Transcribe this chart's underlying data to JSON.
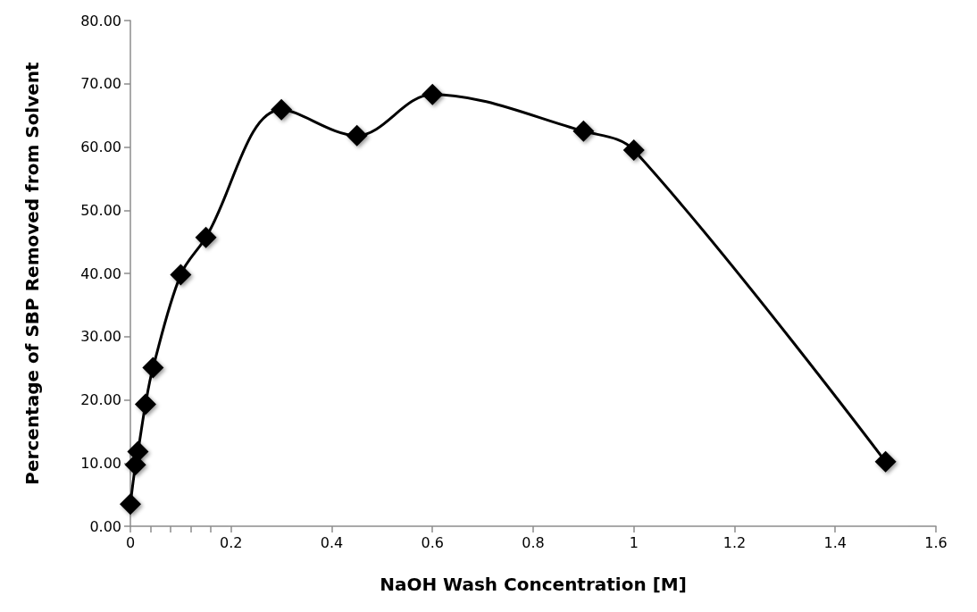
{
  "chart_data": {
    "type": "line",
    "xlabel": "NaOH Wash Concentration [M]",
    "ylabel": "Percentage of SBP Removed from Solvent",
    "x": [
      0,
      0.01,
      0.015,
      0.03,
      0.045,
      0.1,
      0.15,
      0.3,
      0.45,
      0.6,
      0.9,
      1,
      1.5
    ],
    "series": [
      {
        "color": "#000000",
        "values": [
          3.5,
          9.7,
          11.8,
          19.3,
          25.1,
          39.8,
          45.7,
          65.9,
          61.8,
          68.3,
          62.5,
          59.5,
          10.2
        ]
      }
    ],
    "xlim": [
      0,
      1.6
    ],
    "xticks": [
      0,
      {
        "value": 0.04,
        "label": null
      },
      {
        "value": 0.08,
        "label": null
      },
      {
        "value": 0.12,
        "label": null
      },
      {
        "value": 0.16,
        "label": null
      },
      0.2,
      0.4,
      0.6,
      0.8,
      1,
      1.2,
      1.4,
      1.6
    ],
    "ylim": [
      0,
      80
    ],
    "yticks": [
      {
        "value": 0,
        "label": "0.00"
      },
      {
        "value": 10,
        "label": "10.00"
      },
      {
        "value": 20,
        "label": "20.00"
      },
      {
        "value": 30,
        "label": "30.00"
      },
      {
        "value": 40,
        "label": "40.00"
      },
      {
        "value": 50,
        "label": "50.00"
      },
      {
        "value": 60,
        "label": "60.00"
      },
      {
        "value": 70,
        "label": "70.00"
      },
      {
        "value": 80,
        "label": "80.00"
      }
    ],
    "grid": false,
    "marker": "diamond",
    "line_style": "solid"
  }
}
